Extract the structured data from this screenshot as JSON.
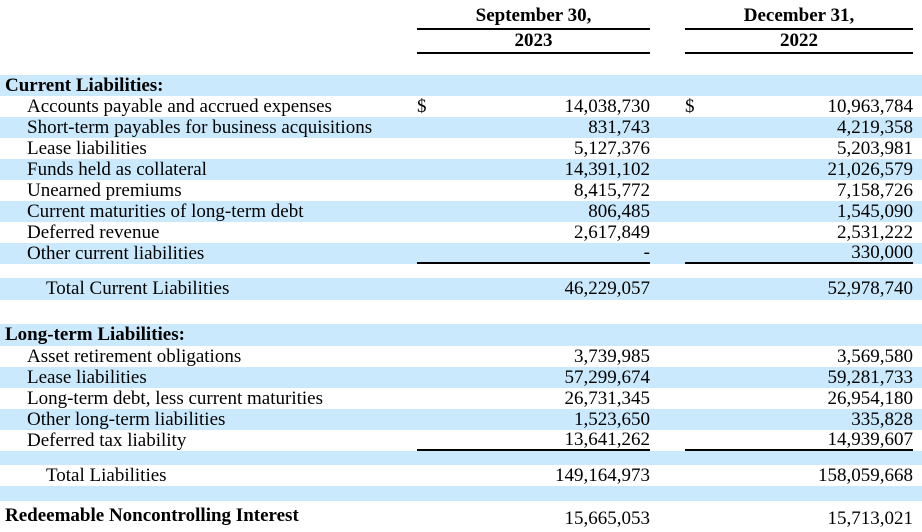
{
  "colors": {
    "stripe": "#cbe9fc",
    "rule": "#000000"
  },
  "header": {
    "col1": {
      "line1": "September 30,",
      "line2": "2023"
    },
    "col2": {
      "line1": "December 31,",
      "line2": "2022"
    }
  },
  "rows": [
    {
      "label": "Current Liabilities:",
      "d1": "",
      "v1": "",
      "d2": "",
      "v2": ""
    },
    {
      "label": "Accounts payable and accrued expenses",
      "d1": "$",
      "v1": "14,038,730",
      "d2": "$",
      "v2": "10,963,784"
    },
    {
      "label": "Short-term payables for business acquisitions",
      "d1": "",
      "v1": "831,743",
      "d2": "",
      "v2": "4,219,358"
    },
    {
      "label": "Lease liabilities",
      "d1": "",
      "v1": "5,127,376",
      "d2": "",
      "v2": "5,203,981"
    },
    {
      "label": "Funds held as collateral",
      "d1": "",
      "v1": "14,391,102",
      "d2": "",
      "v2": "21,026,579"
    },
    {
      "label": "Unearned premiums",
      "d1": "",
      "v1": "8,415,772",
      "d2": "",
      "v2": "7,158,726"
    },
    {
      "label": "Current maturities of long-term debt",
      "d1": "",
      "v1": "806,485",
      "d2": "",
      "v2": "1,545,090"
    },
    {
      "label": "Deferred revenue",
      "d1": "",
      "v1": "2,617,849",
      "d2": "",
      "v2": "2,531,222"
    },
    {
      "label": "Other current liabilities",
      "d1": "",
      "v1": "-",
      "d2": "",
      "v2": "330,000"
    },
    {
      "label": "Total Current Liabilities",
      "d1": "",
      "v1": "46,229,057",
      "d2": "",
      "v2": "52,978,740"
    },
    {
      "label": "Long-term Liabilities:",
      "d1": "",
      "v1": "",
      "d2": "",
      "v2": ""
    },
    {
      "label": "Asset retirement obligations",
      "d1": "",
      "v1": "3,739,985",
      "d2": "",
      "v2": "3,569,580"
    },
    {
      "label": "Lease liabilities",
      "d1": "",
      "v1": "57,299,674",
      "d2": "",
      "v2": "59,281,733"
    },
    {
      "label": "Long-term debt, less current maturities",
      "d1": "",
      "v1": "26,731,345",
      "d2": "",
      "v2": "26,954,180"
    },
    {
      "label": "Other long-term liabilities",
      "d1": "",
      "v1": "1,523,650",
      "d2": "",
      "v2": "335,828"
    },
    {
      "label": "Deferred tax liability",
      "d1": "",
      "v1": "13,641,262",
      "d2": "",
      "v2": "14,939,607"
    },
    {
      "label": "Total Liabilities",
      "d1": "",
      "v1": "149,164,973",
      "d2": "",
      "v2": "158,059,668"
    },
    {
      "label": "Redeemable Noncontrolling Interest",
      "d1": "",
      "v1": "15,665,053",
      "d2": "",
      "v2": "15,713,021"
    }
  ]
}
